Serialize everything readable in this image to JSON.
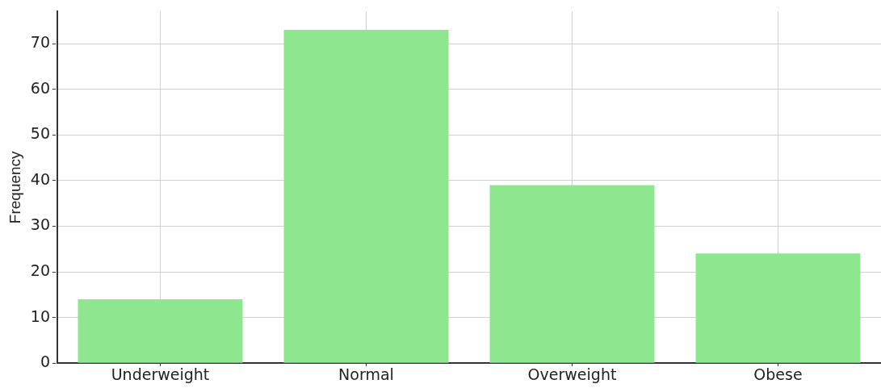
{
  "chart_data": {
    "type": "bar",
    "ylabel": "Frequency",
    "categories": [
      "Underweight",
      "Normal",
      "Overweight",
      "Obese"
    ],
    "values": [
      14,
      73,
      39,
      24
    ],
    "color": "#8ee68e",
    "ylim": [
      0,
      77
    ],
    "yticks": [
      0,
      10,
      20,
      30,
      40,
      50,
      60,
      70
    ],
    "grid": true,
    "legend": false
  }
}
